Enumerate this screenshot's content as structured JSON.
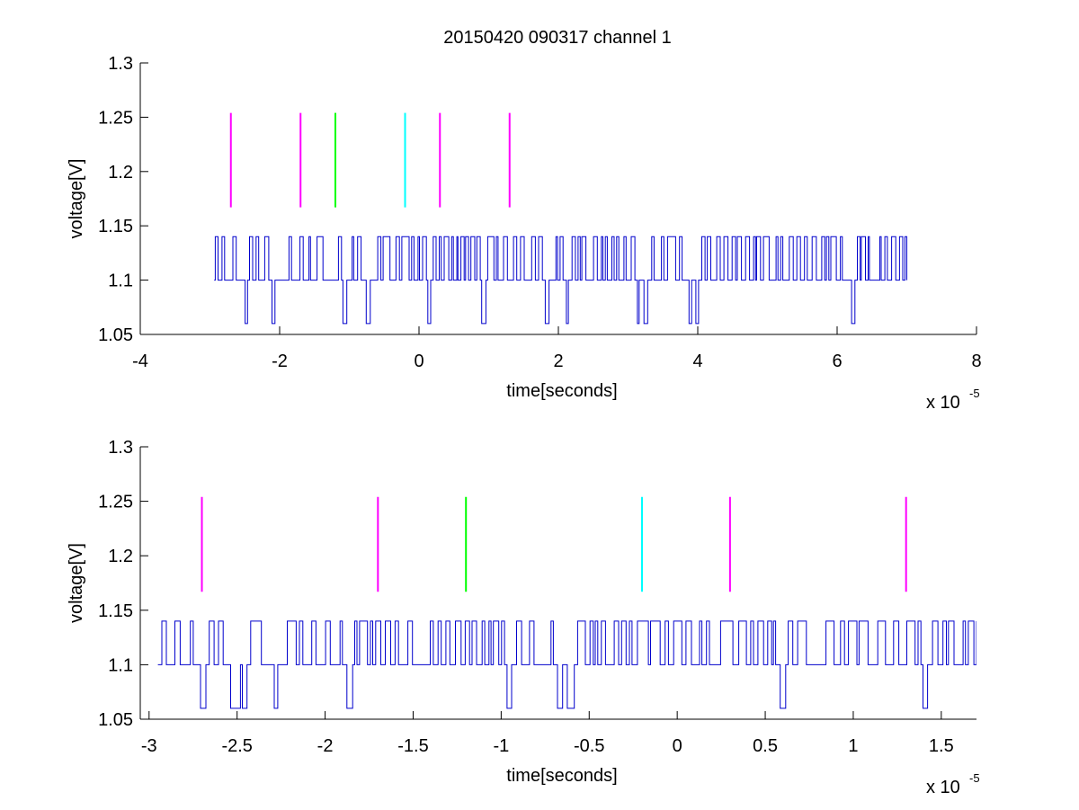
{
  "figure": {
    "title": "20150420 090317 channel 1",
    "trace_color": "#0000cc",
    "background": "#ffffff"
  },
  "chart_data": [
    {
      "type": "line",
      "title": "20150420 090317 channel 1",
      "xlabel": "time[seconds]",
      "ylabel": "voltage[V]",
      "x_multiplier": "x 10",
      "x_multiplier_exponent": "-5",
      "xlim": [
        -4,
        8
      ],
      "ylim": [
        1.05,
        1.3
      ],
      "x_ticks": [
        -4,
        -2,
        0,
        2,
        4,
        6,
        8
      ],
      "x_tick_labels": [
        "-4",
        "-2",
        "0",
        "2",
        "4",
        "6",
        "8"
      ],
      "y_ticks": [
        1.05,
        1.1,
        1.15,
        1.2,
        1.25,
        1.3
      ],
      "y_tick_labels": [
        "1.05",
        "1.1",
        "1.15",
        "1.2",
        "1.25",
        "1.3"
      ],
      "grid": false,
      "trace": {
        "color": "#0000cc",
        "x_range": [
          -2.94,
          7.0
        ],
        "baseline": 1.1,
        "levels": [
          1.06,
          1.1,
          1.14
        ]
      },
      "markers": [
        {
          "x": -2.7,
          "y_range": [
            1.167,
            1.254
          ],
          "color": "#ff00ff"
        },
        {
          "x": -1.7,
          "y_range": [
            1.167,
            1.254
          ],
          "color": "#ff00ff"
        },
        {
          "x": -1.2,
          "y_range": [
            1.167,
            1.254
          ],
          "color": "#00ff00"
        },
        {
          "x": -0.2,
          "y_range": [
            1.167,
            1.254
          ],
          "color": "#00ffff"
        },
        {
          "x": 0.3,
          "y_range": [
            1.167,
            1.254
          ],
          "color": "#ff00ff"
        },
        {
          "x": 1.3,
          "y_range": [
            1.167,
            1.254
          ],
          "color": "#ff00ff"
        }
      ]
    },
    {
      "type": "line",
      "title": "",
      "xlabel": "time[seconds]",
      "ylabel": "voltage[V]",
      "x_multiplier": "x 10",
      "x_multiplier_exponent": "-5",
      "xlim": [
        -3.05,
        1.7
      ],
      "ylim": [
        1.05,
        1.3
      ],
      "x_ticks": [
        -3,
        -2.5,
        -2,
        -1.5,
        -1,
        -0.5,
        0,
        0.5,
        1,
        1.5
      ],
      "x_tick_labels": [
        "-3",
        "-2.5",
        "-2",
        "-1.5",
        "-1",
        "-0.5",
        "0",
        "0.5",
        "1",
        "1.5"
      ],
      "y_ticks": [
        1.05,
        1.1,
        1.15,
        1.2,
        1.25,
        1.3
      ],
      "y_tick_labels": [
        "1.05",
        "1.1",
        "1.15",
        "1.2",
        "1.25",
        "1.3"
      ],
      "grid": false,
      "trace": {
        "color": "#0000cc",
        "x_range": [
          -2.95,
          1.7
        ],
        "baseline": 1.1,
        "levels": [
          1.06,
          1.1,
          1.14
        ]
      },
      "markers": [
        {
          "x": -2.7,
          "y_range": [
            1.167,
            1.254
          ],
          "color": "#ff00ff"
        },
        {
          "x": -1.7,
          "y_range": [
            1.167,
            1.254
          ],
          "color": "#ff00ff"
        },
        {
          "x": -1.2,
          "y_range": [
            1.167,
            1.254
          ],
          "color": "#00ff00"
        },
        {
          "x": -0.2,
          "y_range": [
            1.167,
            1.254
          ],
          "color": "#00ffff"
        },
        {
          "x": 0.3,
          "y_range": [
            1.167,
            1.254
          ],
          "color": "#ff00ff"
        },
        {
          "x": 1.3,
          "y_range": [
            1.167,
            1.254
          ],
          "color": "#ff00ff"
        }
      ]
    }
  ]
}
